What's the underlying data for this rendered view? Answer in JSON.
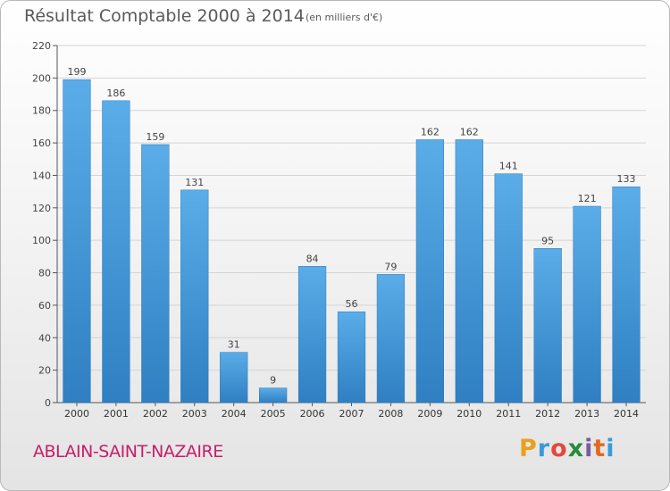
{
  "header": {
    "title": "Résultat Comptable 2000 à 2014",
    "subtitle": "(en milliers d'€)"
  },
  "footer": {
    "commune": "ABLAIN-SAINT-NAZAIRE",
    "logo_letters": [
      "P",
      "r",
      "o",
      "x",
      "i",
      "t",
      "i"
    ],
    "logo_colors": [
      "#e8a020",
      "#3a9ad9",
      "#e04b3a",
      "#2a8a3a",
      "#7a5aa0",
      "#e06a20",
      "#3a9ad9"
    ]
  },
  "colors": {
    "bar": "#4a9de0",
    "bar_dark": "#2e7fc4"
  },
  "chart_data": {
    "type": "bar",
    "title": "Résultat Comptable 2000 à 2014",
    "xlabel": "",
    "ylabel": "",
    "categories": [
      "2000",
      "2001",
      "2002",
      "2003",
      "2004",
      "2005",
      "2006",
      "2007",
      "2008",
      "2009",
      "2010",
      "2011",
      "2012",
      "2013",
      "2014"
    ],
    "values": [
      199,
      186,
      159,
      131,
      31,
      9,
      84,
      56,
      79,
      162,
      162,
      141,
      95,
      121,
      133
    ],
    "ylim": [
      0,
      220
    ],
    "yticks": [
      0,
      20,
      40,
      60,
      80,
      100,
      120,
      140,
      160,
      180,
      200,
      220
    ],
    "grid": true
  }
}
